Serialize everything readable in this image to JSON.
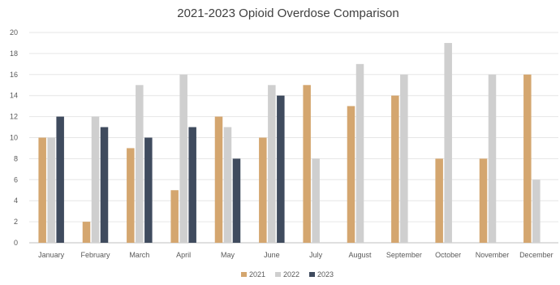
{
  "chart_data": {
    "type": "bar",
    "title": "2021-2023 Opioid Overdose Comparison",
    "xlabel": "",
    "ylabel": "",
    "ylim": [
      0,
      20
    ],
    "yticks": [
      0,
      2,
      4,
      6,
      8,
      10,
      12,
      14,
      16,
      18,
      20
    ],
    "grid": true,
    "legend_position": "bottom",
    "categories": [
      "January",
      "February",
      "March",
      "April",
      "May",
      "June",
      "July",
      "August",
      "September",
      "October",
      "November",
      "December"
    ],
    "series": [
      {
        "name": "2021",
        "color": "#d4a66f",
        "values": [
          10,
          2,
          9,
          5,
          12,
          10,
          15,
          13,
          14,
          8,
          8,
          16
        ]
      },
      {
        "name": "2022",
        "color": "#cfcfcf",
        "values": [
          10,
          12,
          15,
          16,
          11,
          15,
          8,
          17,
          16,
          19,
          16,
          6
        ]
      },
      {
        "name": "2023",
        "color": "#3f4b5e",
        "values": [
          12,
          11,
          10,
          11,
          8,
          14,
          null,
          null,
          null,
          null,
          null,
          null
        ]
      }
    ]
  }
}
